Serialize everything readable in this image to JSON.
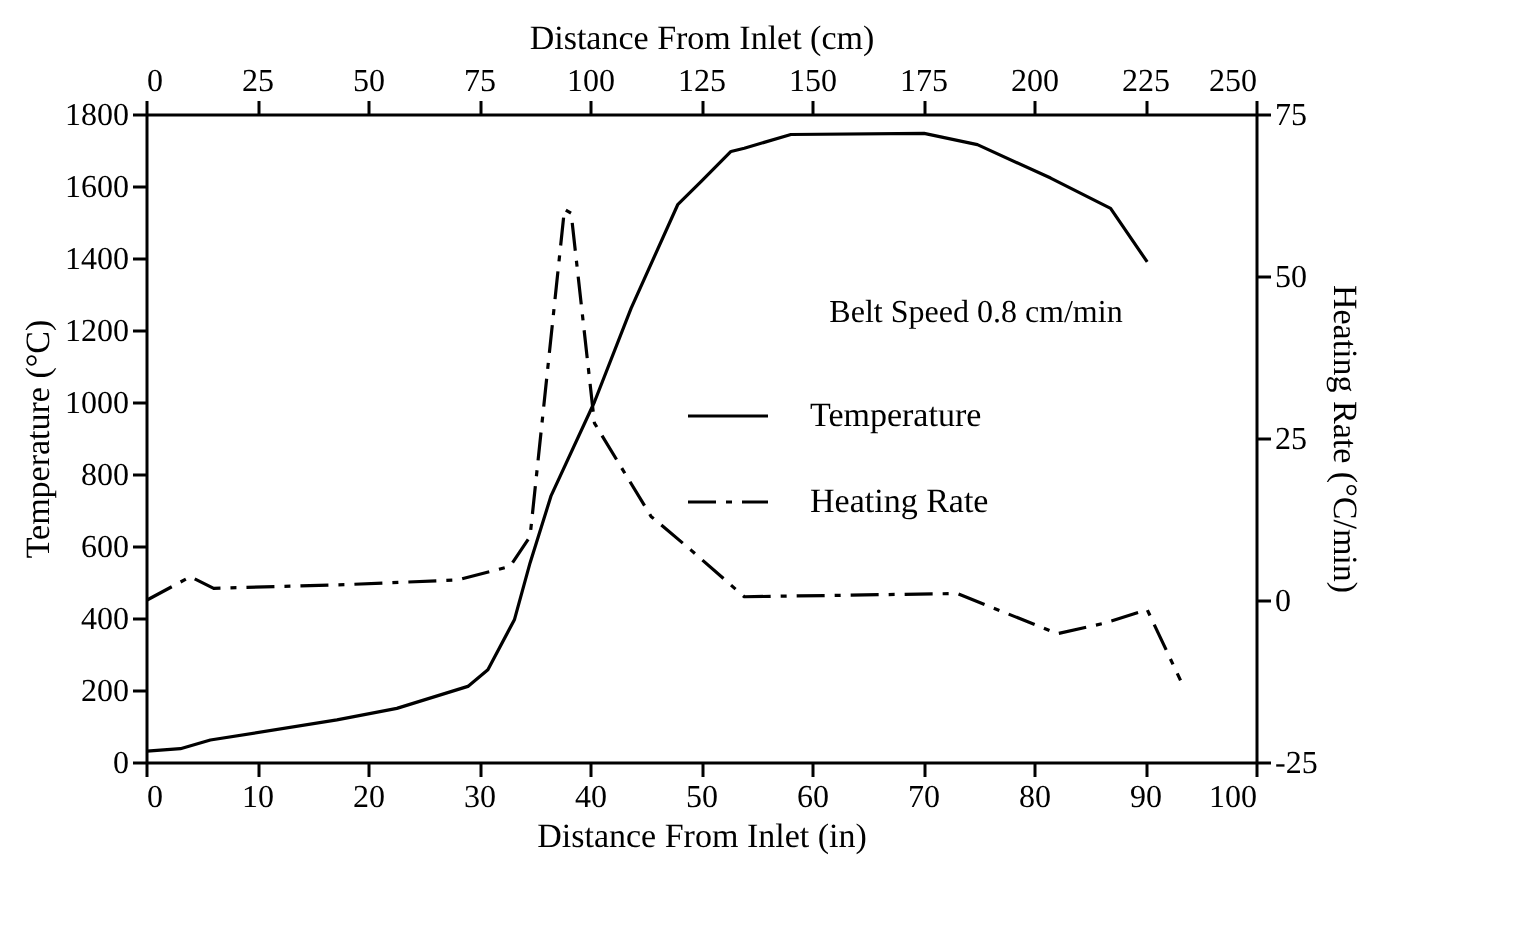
{
  "chart_data": {
    "type": "line",
    "xlabel": "Distance From Inlet (in)",
    "ylabel": "Temperature (°C)",
    "y2label": "Heating Rate (°C/min)",
    "x2label": "Distance From Inlet (cm)",
    "xlim": [
      0,
      100
    ],
    "xticks": [
      0,
      10,
      20,
      30,
      40,
      50,
      60,
      70,
      80,
      90,
      100
    ],
    "x2lim": [
      0,
      250
    ],
    "x2ticks": [
      0,
      25,
      50,
      75,
      100,
      125,
      150,
      175,
      200,
      225,
      250
    ],
    "ylim": [
      0,
      1800
    ],
    "yticks": [
      0,
      200,
      400,
      600,
      800,
      1000,
      1200,
      1400,
      1600,
      1800
    ],
    "y2lim": [
      -25,
      75
    ],
    "y2ticks": [
      -25,
      0,
      25,
      50,
      75
    ],
    "legend": "right",
    "grid": false,
    "marker": "none",
    "annotations": [
      "Belt Speed 0.8 cm/min"
    ],
    "series": [
      {
        "name": "Temperature",
        "color": "#000000",
        "line_style": "solid",
        "x": [
          0.1,
          3.1,
          5.8,
          17.2,
          22.6,
          29,
          30.8,
          33.2,
          34.6,
          36.5,
          40.4,
          43.7,
          47.9,
          50,
          52.7,
          53.9,
          58.1,
          70.1,
          74.9,
          81.5,
          86.9,
          90.2
        ],
        "values": [
          30,
          37,
          61,
          117,
          149,
          210,
          256,
          396,
          553,
          740,
          1000,
          1260,
          1548,
          1612,
          1696,
          1705,
          1743,
          1746,
          1715,
          1622,
          1538,
          1389
        ]
      },
      {
        "name": "Heating Rate",
        "color": "#000000",
        "line_style": "dashed",
        "axis": "y2",
        "x": [
          0.1,
          4,
          6.1,
          18.4,
          28.1,
          32.8,
          34.6,
          37.7,
          38.3,
          40.4,
          45.5,
          49.1,
          53.9,
          73.1,
          82.1,
          86.3,
          90.2,
          93.2
        ],
        "values": [
          0,
          3.6,
          1.8,
          2.4,
          3.1,
          5.2,
          9.8,
          60.3,
          59.7,
          27.3,
          12.9,
          7.7,
          0.5,
          1.0,
          -5.2,
          -3.6,
          -1.5,
          -12.4
        ]
      }
    ]
  }
}
